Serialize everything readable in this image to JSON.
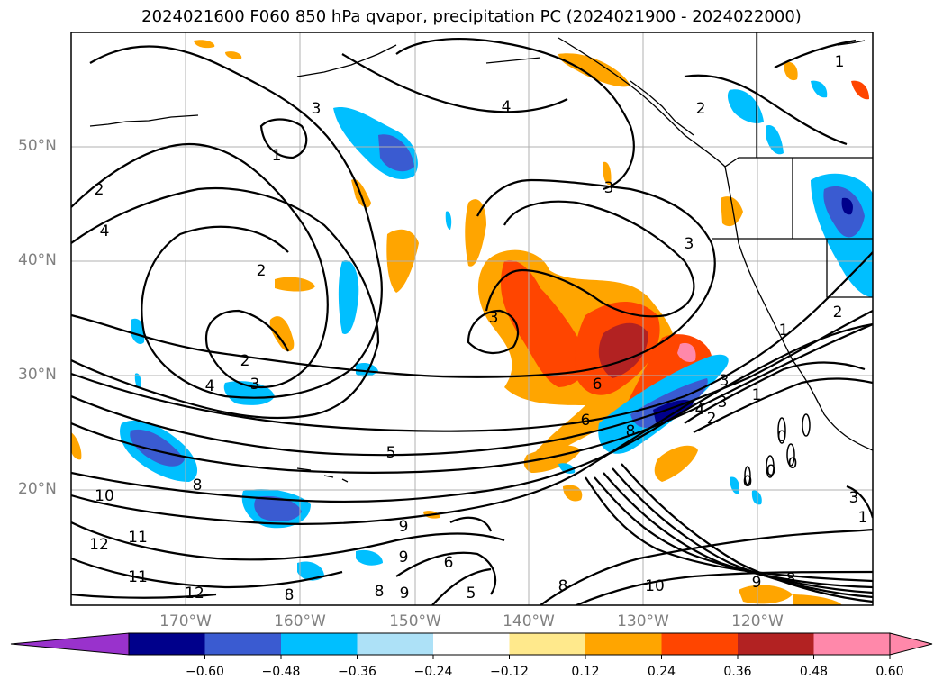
{
  "title": "2024021600 F060 850 hPa qvapor, precipitation PC (2024021900 - 2024022000)",
  "lat_labels": [
    "50°N",
    "40°N",
    "30°N",
    "20°N"
  ],
  "lon_labels": [
    "170°W",
    "160°W",
    "150°W",
    "140°W",
    "130°W",
    "120°W"
  ],
  "colorbar": {
    "ticks": [
      "−0.60",
      "−0.48",
      "−0.36",
      "−0.24",
      "−0.12",
      "0.12",
      "0.24",
      "0.36",
      "0.48",
      "0.60"
    ],
    "colors": [
      "#9932cc",
      "#00008b",
      "#3a5bd1",
      "#00bfff",
      "#ade1f7",
      "#ffffff",
      "#ffe98c",
      "#ffa500",
      "#ff4500",
      "#b22222",
      "#ff88aa",
      "#ff88aa"
    ],
    "extend": "both"
  },
  "contour_labels": [
    "1",
    "2",
    "3",
    "4",
    "2",
    "3",
    "4",
    "3",
    "1",
    "2",
    "4",
    "3",
    "2",
    "1",
    "2",
    "3",
    "6",
    "6",
    "8",
    "4",
    "3",
    "2",
    "1",
    "5",
    "8",
    "10",
    "11",
    "12",
    "11",
    "12",
    "8",
    "9",
    "9",
    "8",
    "9",
    "6",
    "5",
    "8",
    "10",
    "8",
    "9",
    "0",
    "0",
    "0",
    "0",
    "3",
    "1",
    "3"
  ],
  "colors": {
    "contour": "#000000",
    "grid": "#b0b0b0",
    "coast": "#000000"
  }
}
